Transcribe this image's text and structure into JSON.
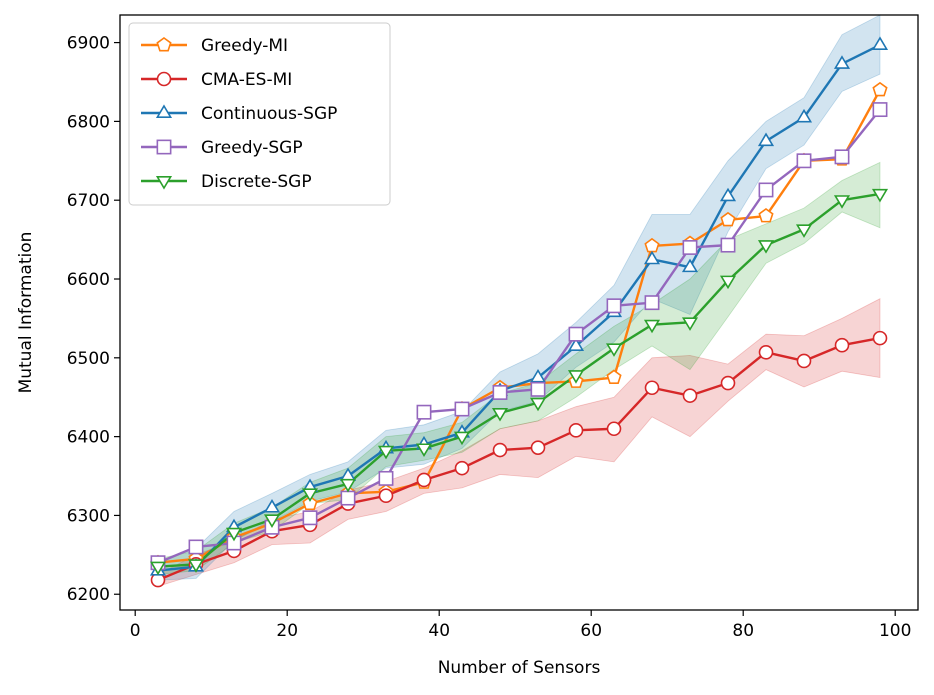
{
  "chart_data": {
    "type": "line",
    "title": "",
    "xlabel": "Number of Sensors",
    "ylabel": "Mutual Information",
    "xlim": [
      -2,
      103
    ],
    "ylim": [
      6180,
      6935
    ],
    "xticks": [
      0,
      20,
      40,
      60,
      80,
      100
    ],
    "yticks": [
      6200,
      6300,
      6400,
      6500,
      6600,
      6700,
      6800,
      6900
    ],
    "grid": false,
    "legend_position": "top-left",
    "x": [
      3,
      8,
      13,
      18,
      23,
      28,
      33,
      38,
      43,
      48,
      53,
      58,
      63,
      68,
      73,
      78,
      83,
      88,
      93,
      98
    ],
    "series": [
      {
        "name": "Greedy-MI",
        "color": "#ff7f0e",
        "marker": "pentagon",
        "values": [
          6240,
          6245,
          6272,
          6290,
          6315,
          6328,
          6330,
          6342,
          6435,
          6462,
          6468,
          6470,
          6475,
          6642,
          6645,
          6675,
          6680,
          6750,
          6752,
          6840
        ]
      },
      {
        "name": "CMA-ES-MI",
        "color": "#d62728",
        "marker": "circle",
        "values": [
          6218,
          6238,
          6255,
          6280,
          6288,
          6315,
          6325,
          6345,
          6360,
          6383,
          6386,
          6408,
          6410,
          6462,
          6452,
          6468,
          6507,
          6496,
          6516,
          6525
        ],
        "band_lower": [
          6210,
          6225,
          6240,
          6263,
          6265,
          6295,
          6305,
          6328,
          6335,
          6352,
          6348,
          6375,
          6368,
          6425,
          6400,
          6445,
          6485,
          6463,
          6483,
          6475
        ],
        "band_upper": [
          6225,
          6250,
          6268,
          6295,
          6305,
          6332,
          6343,
          6360,
          6382,
          6410,
          6420,
          6438,
          6450,
          6500,
          6503,
          6492,
          6530,
          6528,
          6550,
          6575
        ]
      },
      {
        "name": "Continuous-SGP",
        "color": "#1f77b4",
        "marker": "triangle-up",
        "values": [
          6230,
          6235,
          6285,
          6310,
          6336,
          6350,
          6385,
          6390,
          6405,
          6458,
          6475,
          6515,
          6558,
          6625,
          6615,
          6705,
          6775,
          6805,
          6873,
          6897
        ],
        "band_lower": [
          6218,
          6220,
          6268,
          6292,
          6318,
          6330,
          6360,
          6365,
          6385,
          6432,
          6445,
          6488,
          6520,
          6575,
          6555,
          6660,
          6740,
          6770,
          6838,
          6860
        ],
        "band_upper": [
          6242,
          6258,
          6305,
          6328,
          6352,
          6368,
          6408,
          6415,
          6432,
          6482,
          6505,
          6545,
          6592,
          6682,
          6682,
          6750,
          6800,
          6830,
          6910,
          6935
        ]
      },
      {
        "name": "Greedy-SGP",
        "color": "#9467bd",
        "marker": "square",
        "values": [
          6240,
          6260,
          6265,
          6285,
          6297,
          6322,
          6347,
          6431,
          6435,
          6456,
          6460,
          6530,
          6566,
          6570,
          6640,
          6643,
          6713,
          6750,
          6755,
          6815
        ]
      },
      {
        "name": "Discrete-SGP",
        "color": "#2ca02c",
        "marker": "triangle-down",
        "values": [
          6235,
          6238,
          6278,
          6295,
          6328,
          6340,
          6382,
          6385,
          6400,
          6430,
          6443,
          6478,
          6512,
          6542,
          6545,
          6598,
          6643,
          6663,
          6700,
          6708
        ],
        "band_lower": [
          6225,
          6230,
          6265,
          6280,
          6315,
          6320,
          6362,
          6370,
          6380,
          6410,
          6420,
          6450,
          6485,
          6515,
          6485,
          6552,
          6620,
          6645,
          6685,
          6665
        ],
        "band_upper": [
          6245,
          6255,
          6290,
          6310,
          6342,
          6360,
          6400,
          6405,
          6418,
          6455,
          6468,
          6505,
          6540,
          6568,
          6600,
          6650,
          6670,
          6690,
          6725,
          6748
        ]
      }
    ]
  }
}
